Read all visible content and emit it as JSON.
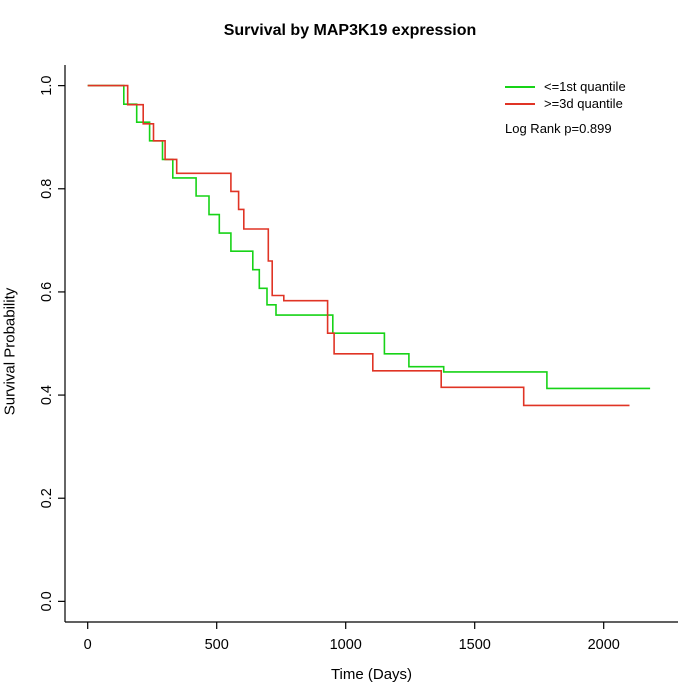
{
  "title": "Survival by MAP3K19 expression",
  "legend": {
    "entries": [
      {
        "label": "<=1st quantile",
        "color": "#17d317"
      },
      {
        "label": ">=3d quantile",
        "color": "#e03425"
      }
    ],
    "annotation": "Log Rank p=0.899"
  },
  "chart_data": {
    "type": "line",
    "subtype": "kaplan-meier-step",
    "title": "Survival by MAP3K19 expression",
    "xlabel": "Time (Days)",
    "ylabel": "Survival Probability",
    "xlim": [
      -88,
      2288
    ],
    "ylim": [
      -0.04,
      1.04
    ],
    "x_ticks": [
      0,
      500,
      1000,
      1500,
      2000
    ],
    "x_tick_labels": [
      "0",
      "500",
      "1000",
      "1500",
      "2000"
    ],
    "y_ticks": [
      0.0,
      0.2,
      0.4,
      0.6,
      0.8,
      1.0
    ],
    "y_tick_labels": [
      "0.0",
      "0.2",
      "0.4",
      "0.6",
      "0.8",
      "1.0"
    ],
    "grid": false,
    "legend_position": "top-right",
    "series": [
      {
        "name": "<=1st quantile",
        "color": "#17d317",
        "points": [
          [
            0,
            1.0
          ],
          [
            140,
            0.964
          ],
          [
            190,
            0.929
          ],
          [
            240,
            0.893
          ],
          [
            290,
            0.857
          ],
          [
            330,
            0.821
          ],
          [
            420,
            0.786
          ],
          [
            470,
            0.75
          ],
          [
            510,
            0.714
          ],
          [
            555,
            0.679
          ],
          [
            640,
            0.643
          ],
          [
            665,
            0.607
          ],
          [
            695,
            0.575
          ],
          [
            730,
            0.555
          ],
          [
            950,
            0.52
          ],
          [
            1150,
            0.48
          ],
          [
            1245,
            0.455
          ],
          [
            1380,
            0.445
          ],
          [
            1780,
            0.413
          ]
        ],
        "end_time": 2180
      },
      {
        "name": ">=3d quantile",
        "color": "#e03425",
        "points": [
          [
            0,
            1.0
          ],
          [
            155,
            0.963
          ],
          [
            215,
            0.926
          ],
          [
            255,
            0.893
          ],
          [
            300,
            0.857
          ],
          [
            345,
            0.83
          ],
          [
            555,
            0.795
          ],
          [
            585,
            0.76
          ],
          [
            605,
            0.722
          ],
          [
            700,
            0.66
          ],
          [
            715,
            0.593
          ],
          [
            760,
            0.583
          ],
          [
            930,
            0.52
          ],
          [
            955,
            0.48
          ],
          [
            1105,
            0.447
          ],
          [
            1370,
            0.415
          ],
          [
            1690,
            0.38
          ]
        ],
        "end_time": 2100
      }
    ]
  }
}
